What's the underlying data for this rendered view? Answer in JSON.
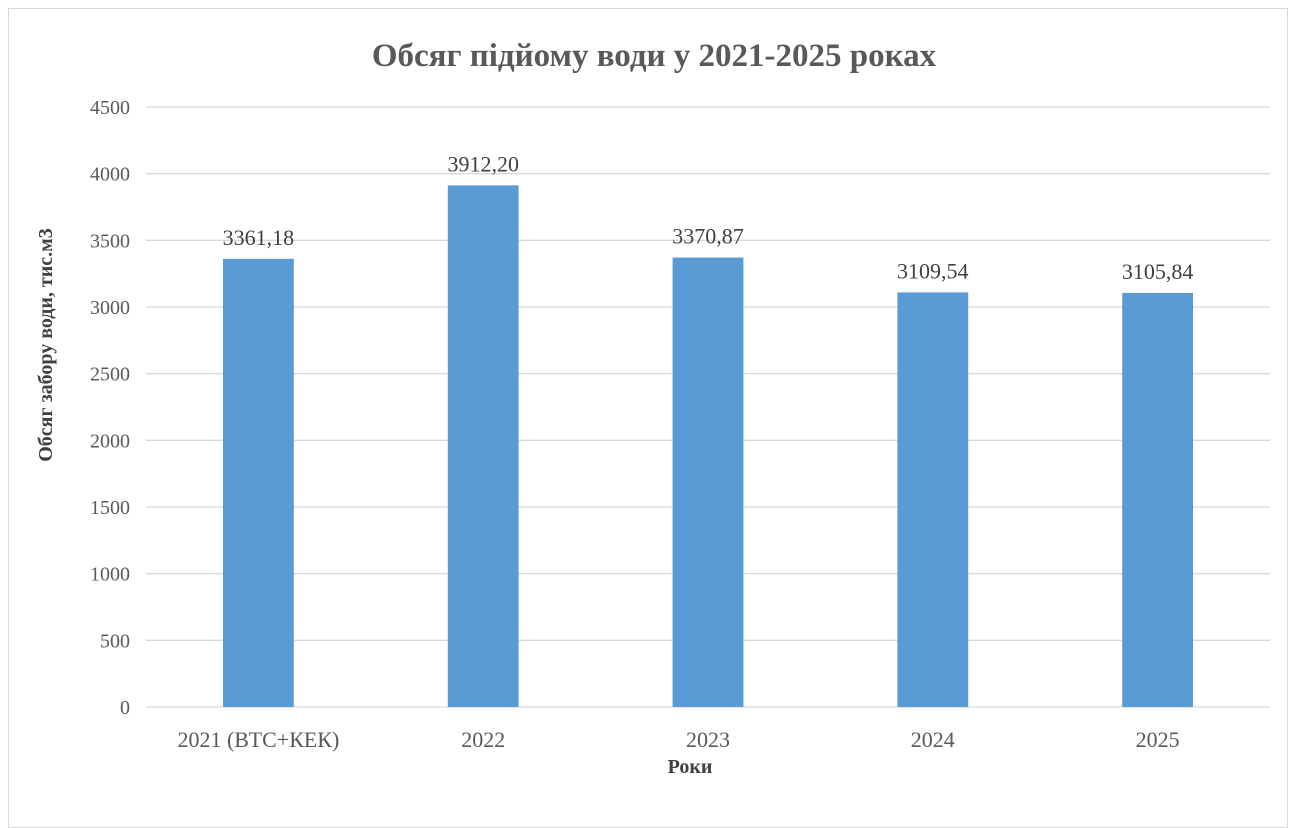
{
  "chart_data": {
    "type": "bar",
    "title": "Обсяг підйому води у 2021-2025 роках",
    "xlabel": "Роки",
    "ylabel": "Обсяг забору води, тис.м3",
    "categories": [
      "2021 (ВТС+КЕК)",
      "2022",
      "2023",
      "2024",
      "2025"
    ],
    "values": [
      3361.18,
      3912.2,
      3370.87,
      3109.54,
      3105.84
    ],
    "data_labels": [
      "3361,18",
      "3912,20",
      "3370,87",
      "3109,54",
      "3105,84"
    ],
    "ylim": [
      0,
      4500
    ],
    "yticks": [
      0,
      500,
      1000,
      1500,
      2000,
      2500,
      3000,
      3500,
      4000,
      4500
    ],
    "grid": true,
    "legend": "none",
    "bar_color": "#5b9bd5",
    "grid_color": "#d9d9d9"
  }
}
